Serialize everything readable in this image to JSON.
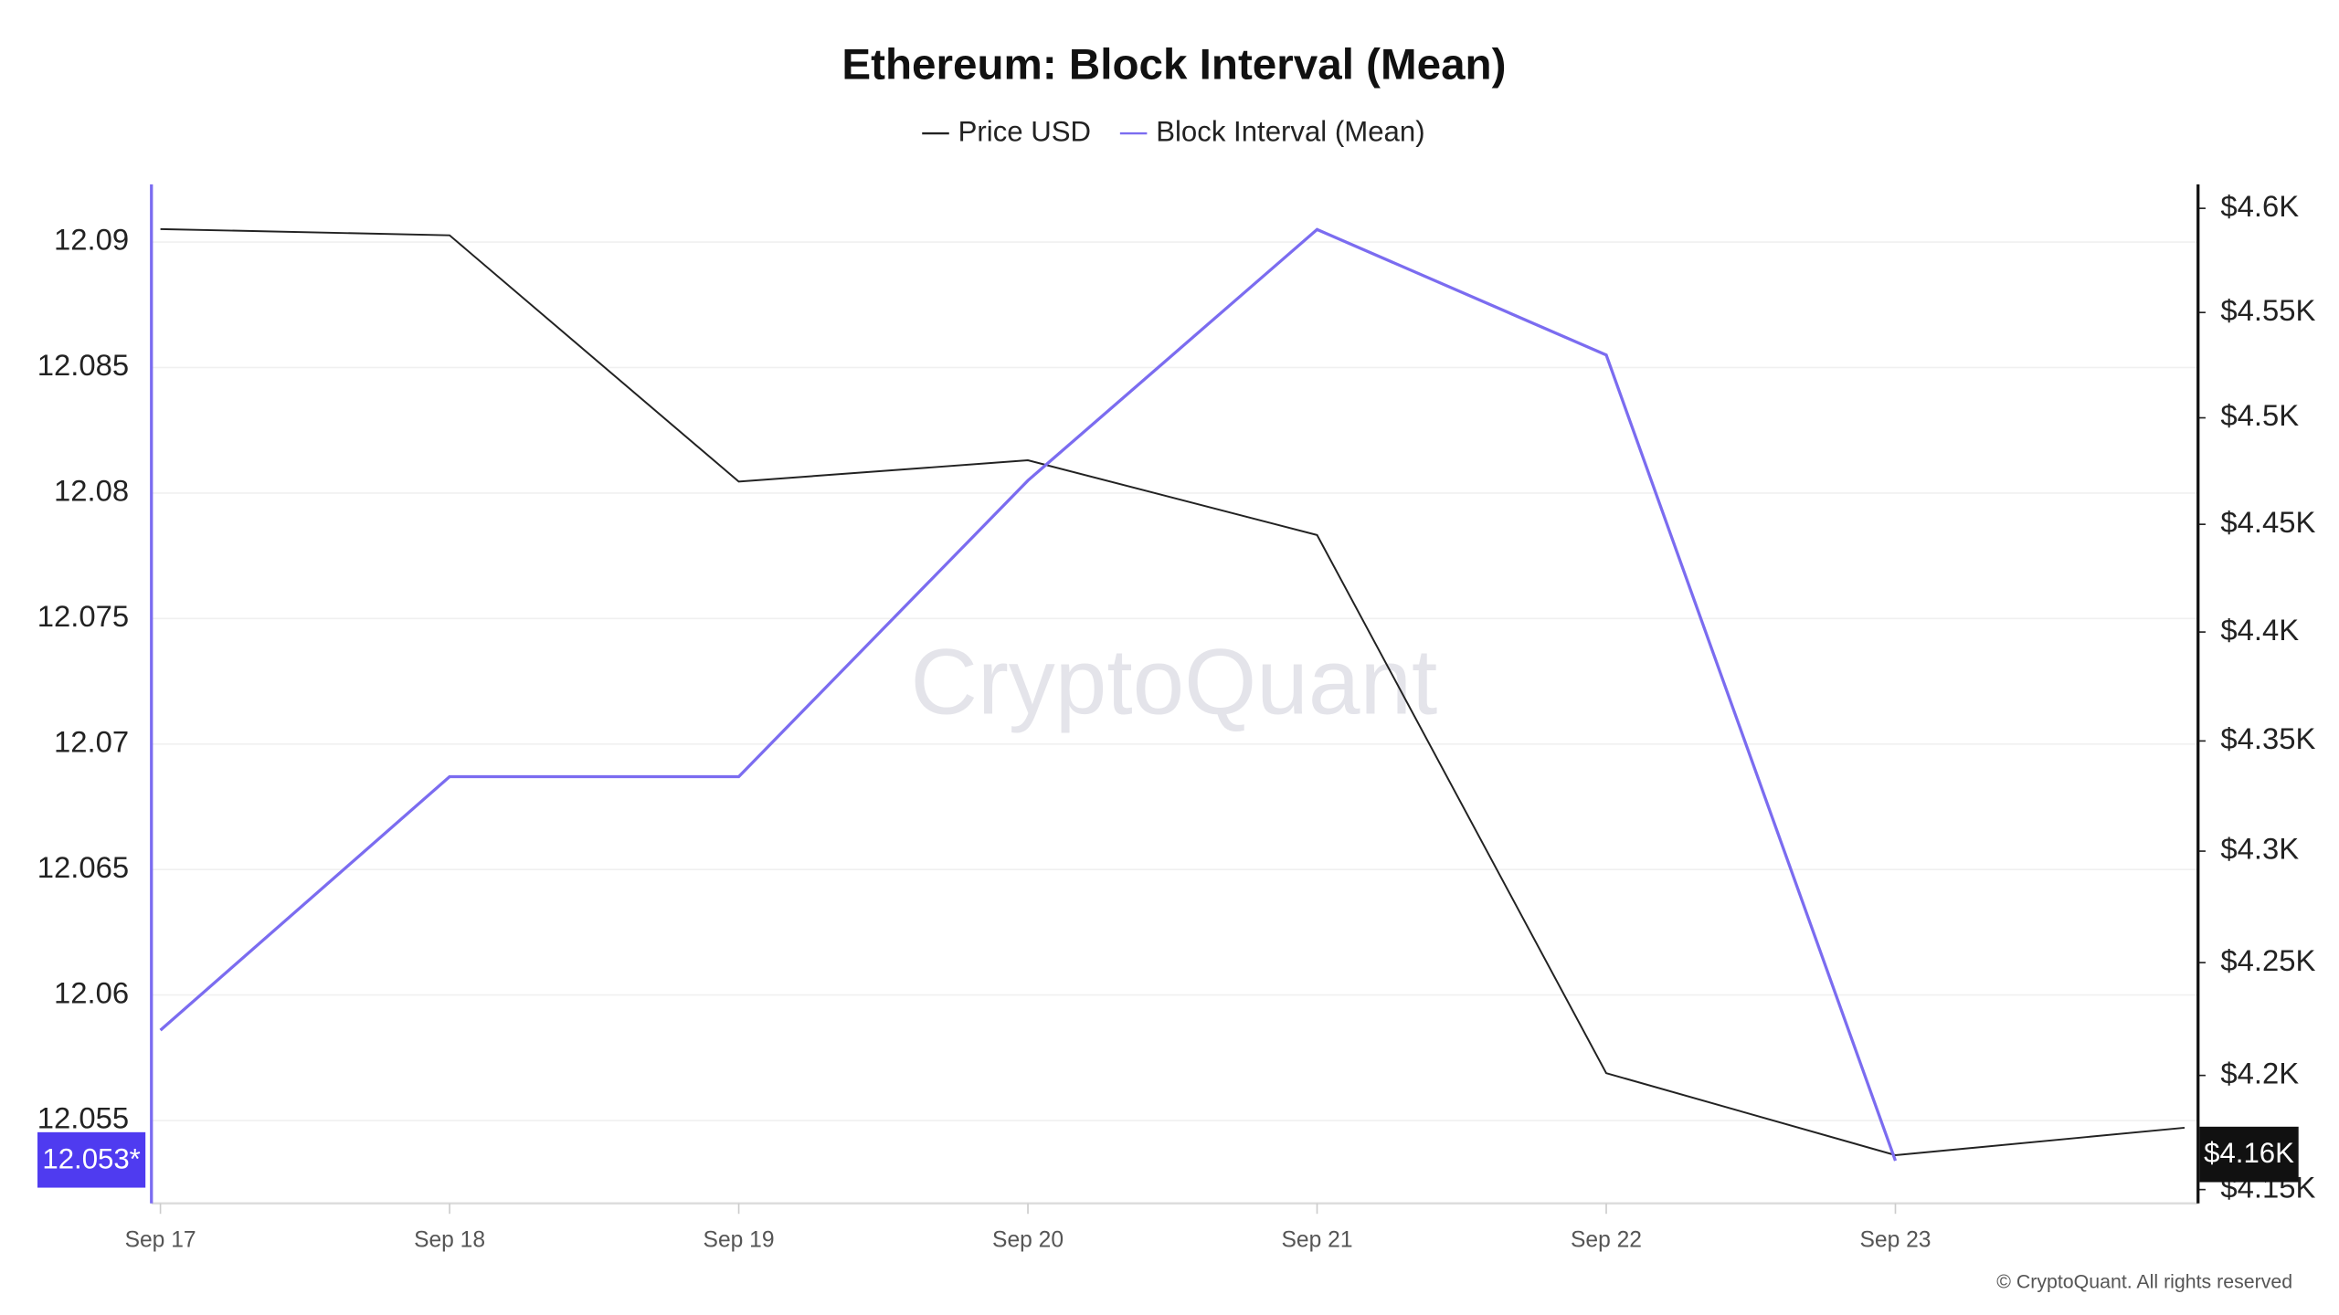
{
  "chart_data": {
    "type": "line",
    "title": "Ethereum: Block Interval (Mean)",
    "categories": [
      "Sep 17",
      "Sep 18",
      "Sep 19",
      "Sep 20",
      "Sep 21",
      "Sep 22",
      "Sep 23",
      null
    ],
    "series": [
      {
        "name": "Price USD",
        "color": "#222222",
        "axis": "y2",
        "values": [
          4590,
          4587,
          4470,
          4480,
          4445,
          4201,
          4165,
          4177
        ]
      },
      {
        "name": "Block Interval (Mean)",
        "color": "#7b6cf0",
        "axis": "y",
        "values": [
          12.0586,
          12.0687,
          12.0687,
          12.0805,
          12.0905,
          12.0855,
          12.0534,
          null
        ]
      }
    ],
    "ylim": [
      12.0517,
      12.0923
    ],
    "yticks": [
      12.055,
      12.06,
      12.065,
      12.07,
      12.075,
      12.08,
      12.085,
      12.09
    ],
    "y2lim": [
      4144,
      4611.6
    ],
    "y2log": true,
    "y2ticks": [
      {
        "value": 4150,
        "label": "$4.15K"
      },
      {
        "value": 4200,
        "label": "$4.2K"
      },
      {
        "value": 4250,
        "label": "$4.25K"
      },
      {
        "value": 4300,
        "label": "$4.3K"
      },
      {
        "value": 4350,
        "label": "$4.35K"
      },
      {
        "value": 4400,
        "label": "$4.4K"
      },
      {
        "value": 4450,
        "label": "$4.45K"
      },
      {
        "value": 4500,
        "label": "$4.5K"
      },
      {
        "value": 4550,
        "label": "$4.55K"
      },
      {
        "value": 4600,
        "label": "$4.6K"
      }
    ],
    "grid": true,
    "legend": "top",
    "y_marker_label": "12.053*",
    "y_marker_color": "#4f3bf0",
    "y2_marker_label": "$4.16K",
    "y2_marker_color": "#111111",
    "watermark": "CryptoQuant",
    "footer": "© CryptoQuant. All rights reserved"
  }
}
